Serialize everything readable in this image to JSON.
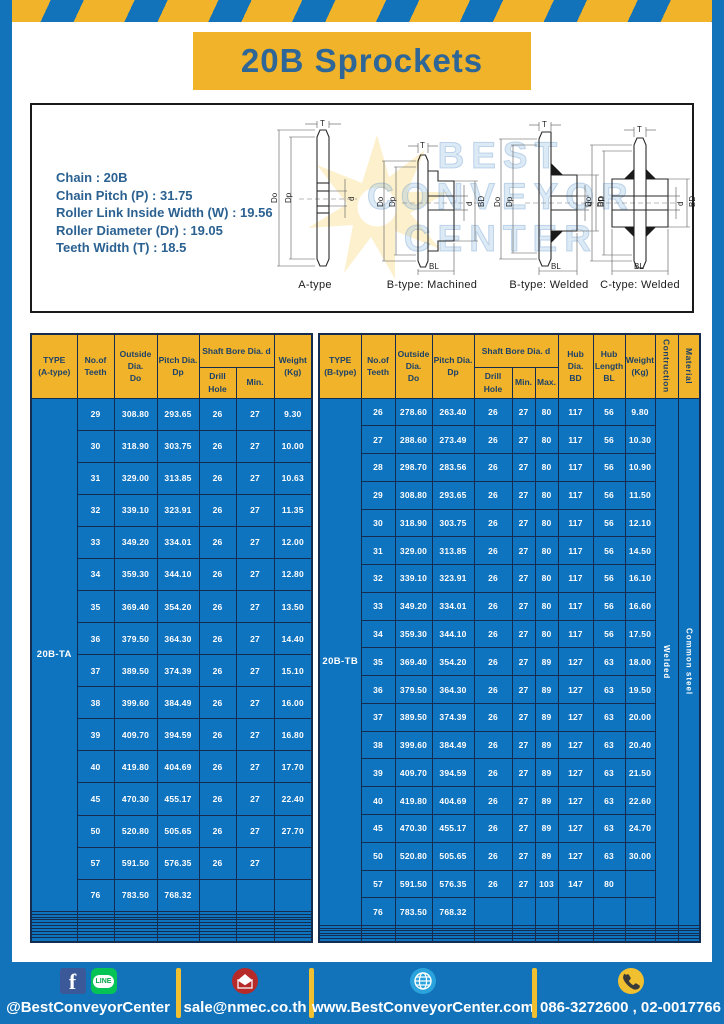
{
  "page": {
    "title": "20B Sprockets"
  },
  "colors": {
    "frame_blue": "#1273bb",
    "stripe_yellow": "#f0b32a",
    "table_header_yellow": "#f0b32a",
    "table_cell_blue": "#0f74bf",
    "table_border_navy": "#132c50",
    "title_text_blue": "#2d6697",
    "footer_divider_yellow": "#f0c030"
  },
  "specs": {
    "lines": [
      "Chain  :  20B",
      "Chain Pitch (P)  :  31.75",
      "Roller Link Inside Width (W)  :  19.56",
      "Roller Diameter (Dr)  : 19.05",
      "Teeth Width (T)  :  18.5"
    ]
  },
  "diagram": {
    "captions": [
      "A-type",
      "B-type: Machined",
      "B-type: Welded",
      "C-type: Welded"
    ],
    "dims": {
      "t": "T",
      "do": "Do",
      "dp": "Dp",
      "d": "d",
      "bd": "BD",
      "bl": "BL"
    },
    "watermark": "BEST\nCONVEYOR\nCENTER",
    "watermark_star_color": "#f5c84a"
  },
  "tables": {
    "left": {
      "header": {
        "type": "TYPE\n(A-type)",
        "teeth": "No.of\nTeeth",
        "outside": "Outside\nDia.\nDo",
        "pitch": "Pitch Dia.\nDp",
        "shaft_bore": "Shaft Bore Dia. d",
        "drill": "Drill Hole",
        "min": "Min.",
        "weight": "Weight\n(Kg)"
      },
      "type_label": "20B-TA",
      "rows": [
        [
          "29",
          "308.80",
          "293.65",
          "26",
          "27",
          "9.30"
        ],
        [
          "30",
          "318.90",
          "303.75",
          "26",
          "27",
          "10.00"
        ],
        [
          "31",
          "329.00",
          "313.85",
          "26",
          "27",
          "10.63"
        ],
        [
          "32",
          "339.10",
          "323.91",
          "26",
          "27",
          "11.35"
        ],
        [
          "33",
          "349.20",
          "334.01",
          "26",
          "27",
          "12.00"
        ],
        [
          "34",
          "359.30",
          "344.10",
          "26",
          "27",
          "12.80"
        ],
        [
          "35",
          "369.40",
          "354.20",
          "26",
          "27",
          "13.50"
        ],
        [
          "36",
          "379.50",
          "364.30",
          "26",
          "27",
          "14.40"
        ],
        [
          "37",
          "389.50",
          "374.39",
          "26",
          "27",
          "15.10"
        ],
        [
          "38",
          "399.60",
          "384.49",
          "26",
          "27",
          "16.00"
        ],
        [
          "39",
          "409.70",
          "394.59",
          "26",
          "27",
          "16.80"
        ],
        [
          "40",
          "419.80",
          "404.69",
          "26",
          "27",
          "17.70"
        ],
        [
          "45",
          "470.30",
          "455.17",
          "26",
          "27",
          "22.40"
        ],
        [
          "50",
          "520.80",
          "505.65",
          "26",
          "27",
          "27.70"
        ],
        [
          "57",
          "591.50",
          "576.35",
          "26",
          "27",
          ""
        ],
        [
          "76",
          "783.50",
          "768.32",
          "",
          "",
          ""
        ]
      ],
      "empty_rows": 10
    },
    "right": {
      "header": {
        "type": "TYPE\n(B-type)",
        "teeth": "No.of\nTeeth",
        "outside": "Outside\nDia.\nDo",
        "pitch": "Pitch Dia.\nDp",
        "shaft_bore": "Shaft Bore Dia. d",
        "drill": "Drill Hole",
        "min": "Min.",
        "max": "Max.",
        "hub_dia": "Hub Dia.\nBD",
        "hub_len": "Hub\nLength\nBL",
        "weight": "Weight\n(Kg)",
        "construction": "Contruction",
        "material": "Material"
      },
      "type_label": "20B-TB",
      "construction": "Welded",
      "material": "Common  steel",
      "rows": [
        [
          "26",
          "278.60",
          "263.40",
          "26",
          "27",
          "80",
          "117",
          "56",
          "9.80"
        ],
        [
          "27",
          "288.60",
          "273.49",
          "26",
          "27",
          "80",
          "117",
          "56",
          "10.30"
        ],
        [
          "28",
          "298.70",
          "283.56",
          "26",
          "27",
          "80",
          "117",
          "56",
          "10.90"
        ],
        [
          "29",
          "308.80",
          "293.65",
          "26",
          "27",
          "80",
          "117",
          "56",
          "11.50"
        ],
        [
          "30",
          "318.90",
          "303.75",
          "26",
          "27",
          "80",
          "117",
          "56",
          "12.10"
        ],
        [
          "31",
          "329.00",
          "313.85",
          "26",
          "27",
          "80",
          "117",
          "56",
          "14.50"
        ],
        [
          "32",
          "339.10",
          "323.91",
          "26",
          "27",
          "80",
          "117",
          "56",
          "16.10"
        ],
        [
          "33",
          "349.20",
          "334.01",
          "26",
          "27",
          "80",
          "117",
          "56",
          "16.60"
        ],
        [
          "34",
          "359.30",
          "344.10",
          "26",
          "27",
          "80",
          "117",
          "56",
          "17.50"
        ],
        [
          "35",
          "369.40",
          "354.20",
          "26",
          "27",
          "89",
          "127",
          "63",
          "18.00"
        ],
        [
          "36",
          "379.50",
          "364.30",
          "26",
          "27",
          "89",
          "127",
          "63",
          "19.50"
        ],
        [
          "37",
          "389.50",
          "374.39",
          "26",
          "27",
          "89",
          "127",
          "63",
          "20.00"
        ],
        [
          "38",
          "399.60",
          "384.49",
          "26",
          "27",
          "89",
          "127",
          "63",
          "20.40"
        ],
        [
          "39",
          "409.70",
          "394.59",
          "26",
          "27",
          "89",
          "127",
          "63",
          "21.50"
        ],
        [
          "40",
          "419.80",
          "404.69",
          "26",
          "27",
          "89",
          "127",
          "63",
          "22.60"
        ],
        [
          "45",
          "470.30",
          "455.17",
          "26",
          "27",
          "89",
          "127",
          "63",
          "24.70"
        ],
        [
          "50",
          "520.80",
          "505.65",
          "26",
          "27",
          "89",
          "127",
          "63",
          "30.00"
        ],
        [
          "57",
          "591.50",
          "576.35",
          "26",
          "27",
          "103",
          "147",
          "80",
          ""
        ],
        [
          "76",
          "783.50",
          "768.32",
          "",
          "",
          "",
          "",
          "",
          ""
        ]
      ],
      "empty_rows": 6
    }
  },
  "footer": {
    "social_handle": "@BestConveyorCenter",
    "email": "sale@nmec.co.th",
    "website": "www.BestConveyorCenter.com",
    "phones": "086-3272600 , 02-0017766",
    "facebook_label": "f",
    "line_label": "LINE",
    "icons": [
      "facebook-icon",
      "line-icon",
      "mail-icon",
      "globe-icon",
      "phone-icon"
    ]
  }
}
